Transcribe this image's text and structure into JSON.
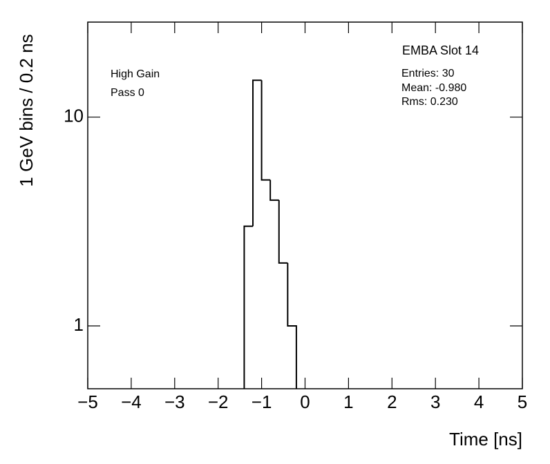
{
  "chart_data": {
    "type": "histogram",
    "title": "EMBA Slot 14",
    "annotations": [
      "High Gain",
      "Pass 0"
    ],
    "stats": [
      "Entries: 30",
      "Mean: -0.980",
      "Rms: 0.230"
    ],
    "xlabel": "Time [ns]",
    "ylabel": "1 GeV bins / 0.2 ns",
    "bins": [
      -1.4,
      -1.2,
      -1.0,
      -0.8,
      -0.6,
      -0.4,
      -0.2
    ],
    "counts": [
      3,
      15,
      5,
      4,
      2,
      1
    ],
    "color": "#000000",
    "xlim": [
      -5,
      5
    ],
    "ylim": [
      0.5,
      28.5
    ],
    "log_y": true,
    "xticks": [
      {
        "value": -5,
        "label": "−5"
      },
      {
        "value": -4,
        "label": "−4"
      },
      {
        "value": -3,
        "label": "−3"
      },
      {
        "value": -2,
        "label": "−2"
      },
      {
        "value": -1,
        "label": "−1"
      },
      0,
      1,
      2,
      3,
      4,
      5
    ],
    "yticks": [
      1,
      10
    ]
  }
}
